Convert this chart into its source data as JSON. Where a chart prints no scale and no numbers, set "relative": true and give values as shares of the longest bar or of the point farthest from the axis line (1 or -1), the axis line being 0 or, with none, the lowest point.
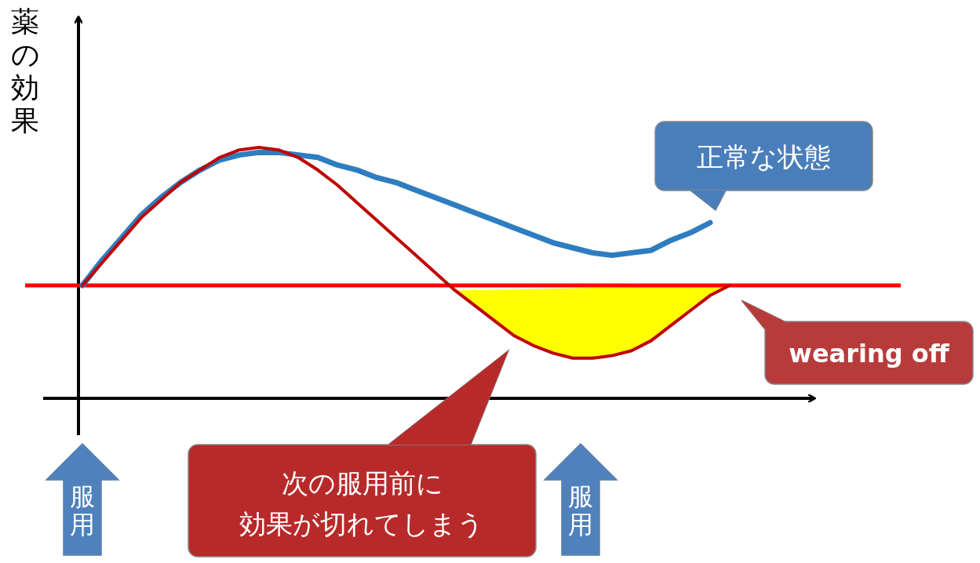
{
  "chart_data": {
    "type": "line",
    "relative": true,
    "ylabel": "薬の効果",
    "categories": [
      null,
      null,
      null,
      null,
      null,
      null,
      null,
      null,
      null,
      null,
      null,
      null,
      null,
      null,
      null,
      null,
      null,
      null,
      null,
      null,
      null,
      null,
      null,
      null,
      null,
      null,
      null,
      null,
      null,
      null,
      null,
      null,
      null,
      null
    ],
    "series": [
      {
        "type": "area",
        "color": "#ffff00",
        "values": [
          null,
          null,
          null,
          null,
          null,
          null,
          null,
          null,
          null,
          null,
          null,
          null,
          null,
          null,
          null,
          null,
          null,
          null,
          null,
          0.43,
          0.37,
          0.31,
          0.25,
          0.21,
          0.18,
          0.16,
          0.16,
          0.17,
          0.19,
          0.23,
          0.29,
          0.35,
          0.41,
          0.45
        ]
      },
      {
        "color": "#2e7dc0",
        "values": [
          0.45,
          0.55,
          0.64,
          0.73,
          0.8,
          0.86,
          0.91,
          0.95,
          0.97,
          0.98,
          0.98,
          0.97,
          0.96,
          0.93,
          0.91,
          0.88,
          0.86,
          0.83,
          0.8,
          0.77,
          0.74,
          0.71,
          0.68,
          0.65,
          0.62,
          0.6,
          0.58,
          0.57,
          0.58,
          0.59,
          0.63,
          0.66,
          0.7,
          null
        ]
      },
      {
        "color": "#c00000",
        "values": [
          0.45,
          0.54,
          0.63,
          0.72,
          0.79,
          0.86,
          0.91,
          0.96,
          0.99,
          1,
          0.99,
          0.96,
          0.91,
          0.85,
          0.78,
          0.71,
          0.64,
          0.57,
          0.5,
          0.43,
          0.37,
          0.31,
          0.25,
          0.21,
          0.18,
          0.16,
          0.16,
          0.17,
          0.19,
          0.23,
          0.29,
          0.35,
          0.41,
          0.45
        ]
      }
    ],
    "ref_lines": [
      {
        "axis": "y",
        "value": 0.45,
        "color": "#ff0000"
      }
    ],
    "annotations": [
      "正常な状態",
      "wearing off",
      "次の服用前に",
      "効果が切れてしまう",
      "服用",
      "服用"
    ]
  }
}
